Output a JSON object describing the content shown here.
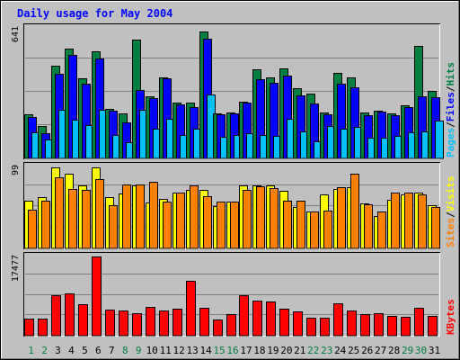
{
  "chart_data": {
    "type": "bar",
    "title": "Daily usage for May 2004",
    "days": [
      "1",
      "2",
      "3",
      "4",
      "5",
      "6",
      "7",
      "8",
      "9",
      "10",
      "11",
      "12",
      "13",
      "14",
      "15",
      "16",
      "17",
      "18",
      "19",
      "20",
      "21",
      "22",
      "23",
      "24",
      "25",
      "26",
      "27",
      "28",
      "29",
      "30",
      "31"
    ],
    "weekend_days": [
      "1",
      "2",
      "8",
      "9",
      "15",
      "16",
      "22",
      "23",
      "29",
      "30"
    ],
    "colors": {
      "title": "#0000ff",
      "hits": "#008040",
      "files": "#0000ff",
      "pages": "#00c0ff",
      "visits": "#ffff00",
      "sites": "#ff8000",
      "kbytes": "#ff0000",
      "weekday_label": "#000000",
      "weekend_label": "#008040",
      "background": "#c0c0c0"
    },
    "panels": [
      {
        "id": "hits-files-pages",
        "max_label": "641",
        "ymax": 680,
        "legend": [
          {
            "text": "Pages",
            "color": "#00c0ff"
          },
          {
            "text": "Files",
            "color": "#0000ff"
          },
          {
            "text": "Hits",
            "color": "#008040"
          }
        ],
        "series": [
          {
            "name": "Hits",
            "color": "#008040",
            "values": [
              222,
              163,
              470,
              555,
              406,
              540,
              247,
              225,
              600,
              313,
              409,
              279,
              279,
              641,
              227,
              230,
              284,
              451,
              409,
              455,
              356,
              324,
              231,
              432,
              407,
              229,
              239,
              225,
              267,
              569,
              342
            ]
          },
          {
            "name": "Files",
            "color": "#0000ff",
            "values": [
              208,
              123,
              427,
              522,
              378,
              505,
              237,
              179,
              345,
              305,
              406,
              269,
              259,
              606,
              222,
              224,
              279,
              398,
              380,
              420,
              315,
              277,
              222,
              378,
              360,
              218,
              236,
              218,
              256,
              311,
              307
            ]
          },
          {
            "name": "Pages",
            "color": "#00c0ff",
            "values": [
              128,
              92,
              245,
              192,
              167,
              244,
              113,
              77,
              244,
              148,
              197,
              117,
              145,
              320,
              105,
              114,
              125,
              113,
              109,
              198,
              133,
              81,
              162,
              148,
              155,
              101,
              101,
              111,
              127,
              135,
              189
            ]
          }
        ]
      },
      {
        "id": "visits-sites",
        "max_label": "99",
        "ymax": 105,
        "legend": [
          {
            "text": "Sites",
            "color": "#ff8000"
          },
          {
            "text": "Visits",
            "color": "#ffff00"
          }
        ],
        "series": [
          {
            "name": "Visits",
            "color": "#ffff00",
            "values": [
              58,
              62,
              99,
              92,
              77,
              99,
              63,
              67,
              77,
              56,
              60,
              68,
              72,
              71,
              51,
              57,
              77,
              77,
              77,
              70,
              50,
              45,
              66,
              73,
              75,
              55,
              39,
              59,
              66,
              68,
              52
            ]
          },
          {
            "name": "Sites",
            "color": "#ff8000",
            "values": [
              47,
              58,
              87,
              73,
              72,
              85,
              53,
              78,
              78,
              82,
              57,
              68,
              77,
              64,
              57,
              57,
              72,
              76,
              74,
              58,
              58,
              45,
              46,
              75,
              92,
              54,
              45,
              68,
              68,
              66,
              50
            ]
          }
        ]
      },
      {
        "id": "kbytes",
        "max_label": "17477",
        "ymax": 18200,
        "legend": [
          {
            "text": "KBytes",
            "color": "#ff0000"
          }
        ],
        "series": [
          {
            "name": "KBytes",
            "color": "#ff0000",
            "values": [
              3690,
              3510,
              8810,
              9190,
              6870,
              17477,
              5530,
              5420,
              4770,
              6130,
              5410,
              5880,
              11950,
              5940,
              3360,
              4620,
              8840,
              7590,
              7360,
              5830,
              5170,
              3860,
              3860,
              6950,
              5410,
              4650,
              4790,
              4160,
              4050,
              6070,
              4200
            ]
          }
        ]
      }
    ]
  }
}
